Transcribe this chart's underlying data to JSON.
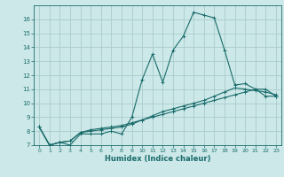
{
  "title": "",
  "xlabel": "Humidex (Indice chaleur)",
  "ylabel": "",
  "bg_color": "#cce8e8",
  "grid_color": "#aacccc",
  "line_color": "#1a6b6b",
  "xlim": [
    -0.5,
    23.5
  ],
  "ylim": [
    7,
    17
  ],
  "xticks": [
    0,
    1,
    2,
    3,
    4,
    5,
    6,
    7,
    8,
    9,
    10,
    11,
    12,
    13,
    14,
    15,
    16,
    17,
    18,
    19,
    20,
    21,
    22,
    23
  ],
  "yticks": [
    7,
    8,
    9,
    10,
    11,
    12,
    13,
    14,
    15,
    16
  ],
  "line1_x": [
    0,
    1,
    2,
    3,
    4,
    5,
    6,
    7,
    8,
    9,
    10,
    11,
    12,
    13,
    14,
    15,
    16,
    17,
    18,
    19,
    20,
    21,
    22,
    23
  ],
  "line1_y": [
    8.3,
    7.0,
    7.2,
    7.0,
    7.8,
    7.8,
    7.8,
    8.0,
    7.8,
    9.0,
    11.7,
    13.5,
    11.5,
    13.8,
    14.8,
    16.5,
    16.3,
    16.1,
    13.8,
    11.3,
    11.4,
    11.0,
    11.0,
    10.5
  ],
  "line2_x": [
    0,
    1,
    2,
    3,
    4,
    5,
    6,
    7,
    8,
    9,
    10,
    11,
    12,
    13,
    14,
    15,
    16,
    17,
    18,
    19,
    20,
    21,
    22,
    23
  ],
  "line2_y": [
    8.3,
    7.0,
    7.2,
    7.3,
    7.9,
    8.1,
    8.2,
    8.3,
    8.4,
    8.6,
    8.8,
    9.0,
    9.2,
    9.4,
    9.6,
    9.8,
    10.0,
    10.2,
    10.4,
    10.6,
    10.8,
    11.0,
    10.5,
    10.5
  ],
  "line3_x": [
    0,
    1,
    2,
    3,
    4,
    5,
    6,
    7,
    8,
    9,
    10,
    11,
    12,
    13,
    14,
    15,
    16,
    17,
    18,
    19,
    20,
    21,
    22,
    23
  ],
  "line3_y": [
    8.3,
    7.0,
    7.2,
    7.3,
    7.9,
    8.0,
    8.1,
    8.2,
    8.3,
    8.5,
    8.8,
    9.1,
    9.4,
    9.6,
    9.8,
    10.0,
    10.2,
    10.5,
    10.8,
    11.1,
    11.0,
    10.9,
    10.8,
    10.6
  ],
  "xlabel_fontsize": 6,
  "tick_fontsize": 5,
  "linewidth": 0.8,
  "markersize": 3
}
